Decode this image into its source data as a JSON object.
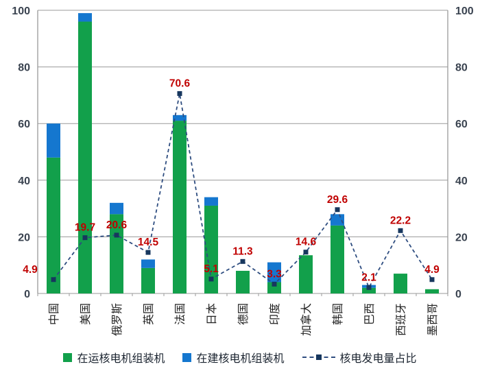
{
  "chart_data": {
    "type": "bar",
    "subtype": "stacked-bar-with-line-overlay",
    "title": "",
    "categories": [
      "中国",
      "美国",
      "俄罗斯",
      "英国",
      "法国",
      "日本",
      "德国",
      "印度",
      "加拿大",
      "韩国",
      "巴西",
      "西班牙",
      "墨西哥"
    ],
    "bar_series": [
      {
        "name": "在运核电机组装机",
        "color": "#12a04b",
        "values": [
          48,
          96,
          28,
          9,
          61,
          31,
          8,
          4,
          13.5,
          24,
          2,
          7,
          1.5
        ]
      },
      {
        "name": "在建核电机组装机",
        "color": "#1577cf",
        "values": [
          12,
          3,
          4,
          3,
          2,
          3,
          0,
          7,
          0,
          4,
          1,
          0,
          0
        ]
      }
    ],
    "line_series": {
      "name": "核电发电量占比",
      "style": "dashed",
      "color": "#2e4d80",
      "marker": "square",
      "marker_color": "#17375e",
      "label_color": "#c00000",
      "values": [
        4.9,
        19.7,
        20.6,
        14.5,
        70.6,
        5.1,
        11.3,
        3.3,
        14.6,
        29.6,
        2.1,
        22.2,
        4.9
      ],
      "labels": [
        "4.9",
        "19.7",
        "20.6",
        "14.5",
        "70.6",
        "5.1",
        "11.3",
        "3.3",
        "14.6",
        "29.6",
        "2.1",
        "22.2",
        "4.9"
      ]
    },
    "y_axis_left": {
      "min": 0,
      "max": 100,
      "step": 20,
      "ticks": [
        "0",
        "20",
        "40",
        "60",
        "80",
        "100"
      ]
    },
    "y_axis_right": {
      "min": 0,
      "max": 100,
      "step": 20,
      "ticks": [
        "0",
        "20",
        "40",
        "60",
        "80",
        "100"
      ]
    },
    "xlabel": "",
    "ylabel": "",
    "grid": true,
    "gridline_color": "#999999",
    "axis_text_color": "#3a4350",
    "category_text_color": "#222222",
    "legend_position": "bottom"
  }
}
